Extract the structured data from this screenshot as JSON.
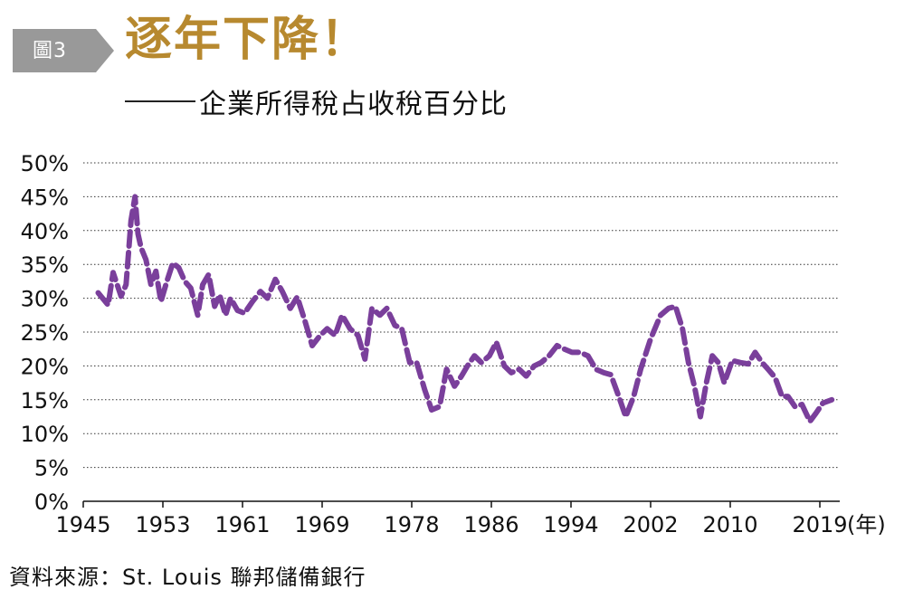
{
  "header": {
    "badge": "圖3",
    "title": "逐年下降！",
    "subtitle": "企業所得稅占收稅百分比"
  },
  "source": "資料來源：St. Louis 聯邦儲備銀行",
  "colors": {
    "line": "#7a3f9b",
    "title": "#b7892f",
    "badge": "#999999",
    "grid": "#333333"
  },
  "chart_data": {
    "type": "line",
    "title": "逐年下降！",
    "subtitle": "企業所得稅占收稅百分比",
    "xlabel": "(年)",
    "ylabel": "",
    "xlim": [
      1945,
      2021
    ],
    "ylim": [
      0,
      50
    ],
    "x_ticks": [
      "1945",
      "1953",
      "1961",
      "1969",
      "1978",
      "1986",
      "1994",
      "2002",
      "2010",
      "2019"
    ],
    "y_ticks": [
      "0%",
      "5%",
      "10%",
      "15%",
      "20%",
      "25%",
      "30%",
      "35%",
      "40%",
      "45%",
      "50%"
    ],
    "grid": true,
    "line_style": "dashed",
    "series": [
      {
        "name": "",
        "x": [
          1946.5,
          1947.5,
          1948.0,
          1948.8,
          1949.3,
          1949.8,
          1950.2,
          1950.5,
          1950.8,
          1951.3,
          1951.8,
          1952.3,
          1952.8,
          1953.4,
          1954.0,
          1954.6,
          1955.2,
          1955.8,
          1956.5,
          1957.0,
          1957.6,
          1958.2,
          1958.7,
          1959.3,
          1959.8,
          1960.5,
          1961.2,
          1962.0,
          1962.8,
          1963.5,
          1964.3,
          1965.0,
          1965.8,
          1966.5,
          1967.3,
          1968.0,
          1968.8,
          1969.5,
          1970.3,
          1971.0,
          1971.8,
          1972.6,
          1973.3,
          1974.0,
          1974.8,
          1975.5,
          1976.3,
          1977.0,
          1977.8,
          1978.5,
          1979.3,
          1980.0,
          1980.8,
          1981.5,
          1982.3,
          1983.0,
          1983.6,
          1984.3,
          1985.0,
          1985.8,
          1986.5,
          1987.3,
          1988.0,
          1988.8,
          1989.5,
          1990.3,
          1991.0,
          1991.8,
          1992.6,
          1993.3,
          1994.1,
          1994.9,
          1995.7,
          1996.5,
          1997.3,
          1998.0,
          1998.8,
          1999.5,
          2000.3,
          2001.0,
          2002.0,
          2003.0,
          2003.8,
          2004.5,
          2005.2,
          2005.8,
          2006.4,
          2007.0,
          2007.6,
          2008.2,
          2008.8,
          2009.4,
          2010.2,
          2011.0,
          2011.8,
          2012.5,
          2013.2,
          2013.8,
          2014.5,
          2015.2,
          2015.8,
          2016.5,
          2017.2,
          2018.0,
          2018.6,
          2019.3,
          2020.2
        ],
        "y": [
          30.8,
          29.0,
          33.8,
          30.3,
          32.0,
          41.5,
          45.0,
          39.5,
          37.5,
          35.7,
          32.0,
          34.0,
          29.5,
          32.5,
          35.2,
          34.5,
          32.5,
          31.5,
          27.5,
          32.0,
          33.5,
          28.8,
          30.5,
          27.5,
          30.0,
          28.2,
          27.8,
          29.5,
          31.0,
          30.0,
          32.8,
          31.0,
          28.5,
          30.2,
          26.5,
          23.0,
          24.5,
          25.5,
          24.5,
          27.5,
          25.5,
          24.5,
          21.0,
          28.5,
          27.5,
          28.5,
          26.0,
          25.5,
          20.5,
          20.5,
          16.5,
          13.5,
          14.0,
          19.5,
          17.0,
          18.5,
          20.0,
          21.5,
          20.5,
          21.5,
          23.5,
          20.0,
          19.0,
          19.5,
          18.5,
          20.0,
          20.5,
          21.5,
          23.0,
          22.5,
          22.0,
          22.0,
          21.5,
          19.5,
          19.0,
          18.7,
          15.5,
          12.5,
          15.5,
          19.5,
          24.0,
          27.5,
          28.5,
          28.8,
          25.5,
          20.5,
          17.0,
          12.5,
          17.5,
          21.5,
          20.5,
          17.5,
          20.8,
          20.5,
          20.3,
          22.0,
          20.5,
          19.5,
          18.3,
          15.5,
          15.5,
          14.0,
          14.3,
          11.8,
          13.0,
          14.5,
          15.0
        ]
      }
    ]
  }
}
